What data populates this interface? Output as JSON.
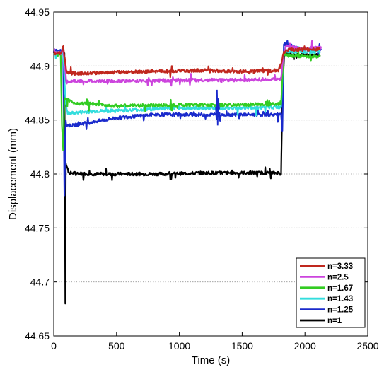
{
  "chart_data": {
    "type": "line",
    "xlabel": "Time (s)",
    "ylabel": "Displacement (mm)",
    "xlim": [
      0,
      2500
    ],
    "ylim": [
      44.65,
      44.95
    ],
    "xticks": [
      "0",
      "500",
      "1000",
      "1500",
      "2000",
      "2500"
    ],
    "yticks": [
      "44.65",
      "44.7",
      "44.75",
      "44.8",
      "44.85",
      "44.9",
      "44.95"
    ],
    "grid": "horizontal dotted",
    "legend_position": "bottom-right",
    "series": [
      {
        "name": "n=3.33",
        "color": "#c0281e",
        "points": [
          [
            0,
            44.912
          ],
          [
            60,
            44.912
          ],
          [
            75,
            44.918
          ],
          [
            95,
            44.9
          ],
          [
            100,
            44.895
          ],
          [
            150,
            44.893
          ],
          [
            400,
            44.894
          ],
          [
            800,
            44.895
          ],
          [
            1200,
            44.896
          ],
          [
            1500,
            44.895
          ],
          [
            1790,
            44.896
          ],
          [
            1810,
            44.902
          ],
          [
            1830,
            44.912
          ],
          [
            1850,
            44.915
          ],
          [
            2000,
            44.915
          ],
          [
            2120,
            44.916
          ]
        ]
      },
      {
        "name": "n=2.5",
        "color": "#cc44dd",
        "points": [
          [
            0,
            44.912
          ],
          [
            60,
            44.912
          ],
          [
            75,
            44.916
          ],
          [
            95,
            44.893
          ],
          [
            100,
            44.885
          ],
          [
            150,
            44.886
          ],
          [
            500,
            44.886
          ],
          [
            1000,
            44.887
          ],
          [
            1500,
            44.887
          ],
          [
            1810,
            44.888
          ],
          [
            1830,
            44.912
          ],
          [
            1850,
            44.918
          ],
          [
            2000,
            44.916
          ],
          [
            2130,
            44.917
          ]
        ]
      },
      {
        "name": "n=1.67",
        "color": "#33cc22",
        "points": [
          [
            0,
            44.912
          ],
          [
            55,
            44.912
          ],
          [
            65,
            44.845
          ],
          [
            75,
            44.822
          ],
          [
            85,
            44.87
          ],
          [
            100,
            44.87
          ],
          [
            150,
            44.866
          ],
          [
            500,
            44.863
          ],
          [
            1000,
            44.864
          ],
          [
            1500,
            44.864
          ],
          [
            1810,
            44.865
          ],
          [
            1830,
            44.912
          ],
          [
            1850,
            44.91
          ],
          [
            2000,
            44.909
          ],
          [
            2120,
            44.909
          ]
        ]
      },
      {
        "name": "n=1.43",
        "color": "#33dddd",
        "points": [
          [
            0,
            44.912
          ],
          [
            60,
            44.912
          ],
          [
            75,
            44.912
          ],
          [
            95,
            44.865
          ],
          [
            110,
            44.856
          ],
          [
            300,
            44.858
          ],
          [
            600,
            44.859
          ],
          [
            900,
            44.861
          ],
          [
            1200,
            44.861
          ],
          [
            1500,
            44.861
          ],
          [
            1810,
            44.862
          ],
          [
            1830,
            44.911
          ],
          [
            1850,
            44.914
          ],
          [
            2000,
            44.913
          ],
          [
            2120,
            44.913
          ]
        ]
      },
      {
        "name": "n=1.25",
        "color": "#1a2acc",
        "points": [
          [
            0,
            44.914
          ],
          [
            60,
            44.914
          ],
          [
            75,
            44.918
          ],
          [
            85,
            44.78
          ],
          [
            95,
            44.845
          ],
          [
            150,
            44.845
          ],
          [
            300,
            44.848
          ],
          [
            500,
            44.852
          ],
          [
            800,
            44.855
          ],
          [
            1200,
            44.855
          ],
          [
            1500,
            44.855
          ],
          [
            1810,
            44.855
          ],
          [
            1820,
            44.84
          ],
          [
            1832,
            44.92
          ],
          [
            1850,
            44.92
          ],
          [
            2000,
            44.915
          ],
          [
            2130,
            44.915
          ]
        ]
      },
      {
        "name": "n=1",
        "color": "#000000",
        "points": [
          [
            0,
            44.912
          ],
          [
            70,
            44.912
          ],
          [
            85,
            44.912
          ],
          [
            92,
            44.68
          ],
          [
            96,
            44.81
          ],
          [
            120,
            44.801
          ],
          [
            300,
            44.8
          ],
          [
            600,
            44.8
          ],
          [
            900,
            44.8
          ],
          [
            1200,
            44.801
          ],
          [
            1500,
            44.801
          ],
          [
            1790,
            44.801
          ],
          [
            1810,
            44.8
          ],
          [
            1820,
            44.87
          ],
          [
            1835,
            44.912
          ],
          [
            1900,
            44.91
          ],
          [
            2000,
            44.91
          ],
          [
            2120,
            44.91
          ]
        ]
      }
    ]
  }
}
